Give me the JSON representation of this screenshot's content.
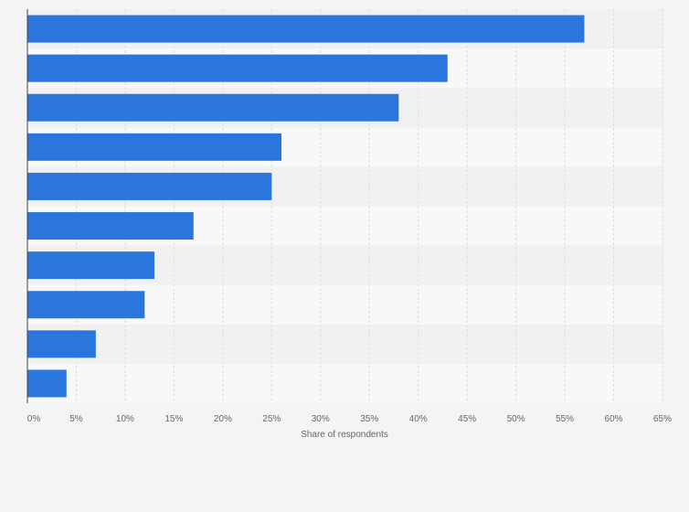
{
  "chart_data": {
    "type": "bar",
    "orientation": "horizontal",
    "categories": [
      "",
      "",
      "",
      "",
      "",
      "",
      "",
      "",
      "",
      ""
    ],
    "values": [
      57,
      43,
      38,
      26,
      25,
      17,
      13,
      12,
      7,
      4
    ],
    "xlabel": "Share of respondents",
    "ylabel": "",
    "xlim": [
      0,
      65
    ],
    "x_ticks": [
      0,
      5,
      10,
      15,
      20,
      25,
      30,
      35,
      40,
      45,
      50,
      55,
      60,
      65
    ],
    "tick_format": "{v}%",
    "grid": true,
    "bar_color": "#2a76dd",
    "row_band_colors": [
      "#f1f1f1",
      "#f8f8f8"
    ],
    "gridline_color": "#dddddd",
    "axis_color": "#444444",
    "text_color": "#666666"
  }
}
